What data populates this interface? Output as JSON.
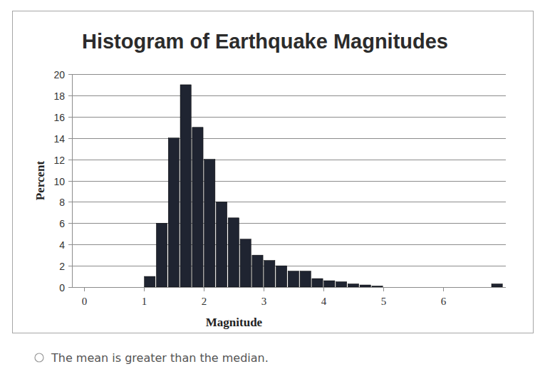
{
  "chart_data": {
    "type": "histogram",
    "title": "Histogram of Earthquake Magnitudes",
    "x_label": "Magnitude",
    "y_label": "Percent",
    "bins": [
      1.0,
      1.2,
      1.4,
      1.6,
      1.8,
      2.0,
      2.2,
      2.4,
      2.6,
      2.8,
      3.0,
      3.2,
      3.4,
      3.6,
      3.8,
      4.0,
      4.2,
      4.4,
      4.6,
      4.8,
      5.0,
      5.2,
      5.4,
      5.6,
      5.8,
      6.0,
      6.2,
      6.4,
      6.6,
      6.8,
      7.0
    ],
    "values": [
      1,
      6,
      14,
      19,
      15,
      12,
      8,
      6.5,
      4.5,
      3,
      2.5,
      2,
      1.5,
      1.5,
      0.8,
      0.6,
      0.5,
      0.3,
      0.2,
      0.1,
      0,
      0,
      0,
      0,
      0,
      0,
      0,
      0,
      0,
      0.3
    ],
    "color": "#1f2431",
    "xlim": [
      -0.2,
      7.0
    ],
    "xticks": [
      0,
      1,
      2,
      3,
      4,
      5,
      6
    ],
    "ylim": [
      0,
      20
    ],
    "yticks": [
      0,
      2,
      4,
      6,
      8,
      10,
      12,
      14,
      16,
      18,
      20
    ],
    "grid": true,
    "annotations": [
      "The mean is greater than the median."
    ]
  }
}
